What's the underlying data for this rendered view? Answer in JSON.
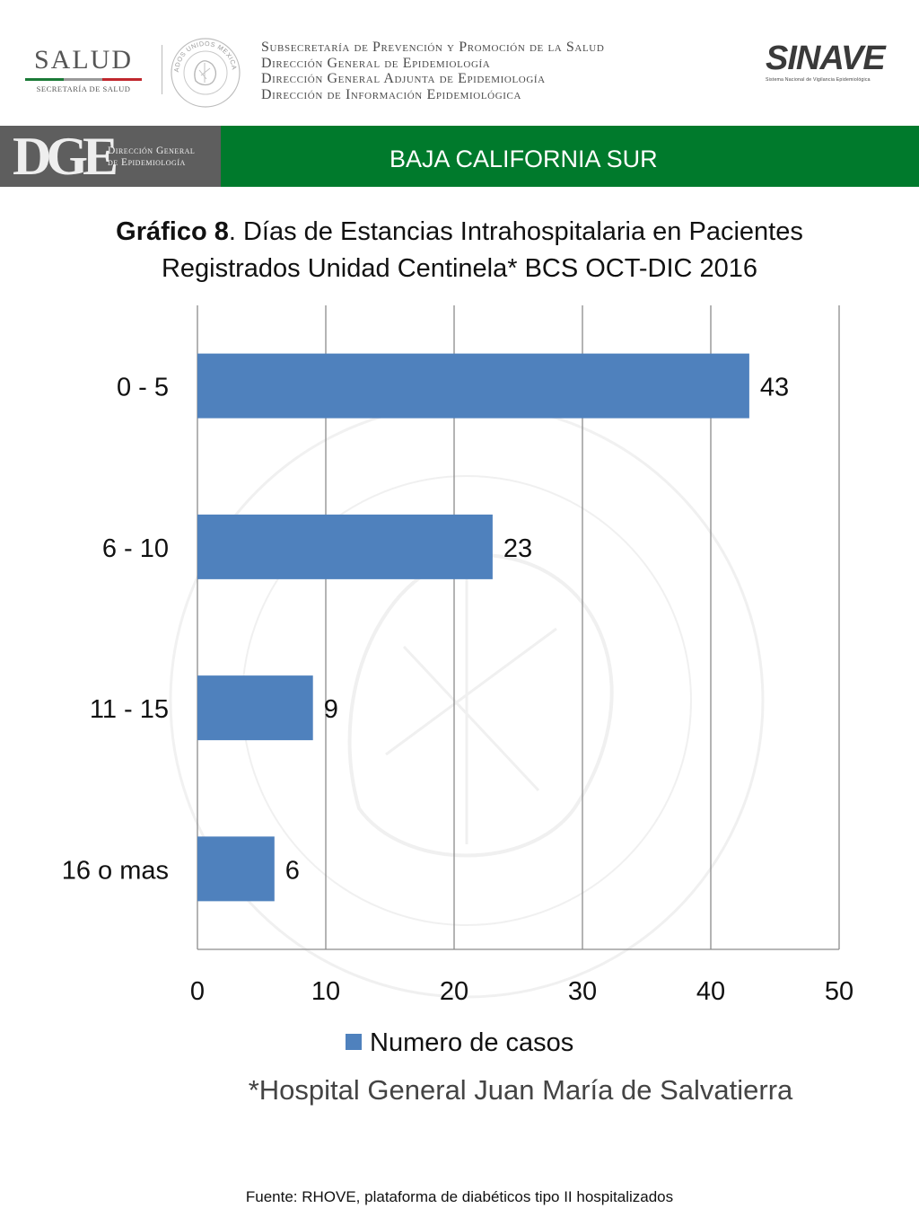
{
  "header": {
    "salud_logo": {
      "word": "SALUD",
      "subtitle": "SECRETARÍA DE SALUD"
    },
    "seal_text": "ESTADOS UNIDOS MEXICANOS",
    "lines": [
      "Subsecretaría de Prevención y Promoción de la Salud",
      "Dirección General de Epidemiología",
      "Dirección General Adjunta de Epidemiología",
      "Dirección de Información Epidemiológica"
    ],
    "sinave": {
      "word": "SINAVE",
      "subtitle": "Sistema Nacional de Vigilancia Epidemiológica"
    }
  },
  "band": {
    "dge_letters": "DGE",
    "dge_text_line1": "Dirección General",
    "dge_text_line2": "de Epidemiología",
    "state": "BAJA CALIFORNIA SUR",
    "green": "#007a2c",
    "gray": "#5e5e5e"
  },
  "chart_data": {
    "type": "bar",
    "orientation": "horizontal",
    "title_bold": "Gráfico 8",
    "title_rest": ". Días de Estancias Intrahospitalaria en Pacientes",
    "title_line2": "Registrados Unidad Centinela* BCS  OCT-DIC 2016",
    "categories": [
      "0 - 5",
      "6 - 10",
      "11 - 15",
      "16 o mas"
    ],
    "series": [
      {
        "name": "Numero de casos",
        "values": [
          43,
          23,
          9,
          6
        ],
        "color": "#4f81bd"
      }
    ],
    "xlim": [
      0,
      50
    ],
    "xticks": [
      0,
      10,
      20,
      30,
      40,
      50
    ],
    "grid": true,
    "legend_position": "bottom",
    "data_labels": true
  },
  "notes": {
    "hospital": "*Hospital General Juan María de Salvatierra",
    "source": "Fuente: RHOVE, plataforma de diabéticos tipo II hospitalizados"
  }
}
